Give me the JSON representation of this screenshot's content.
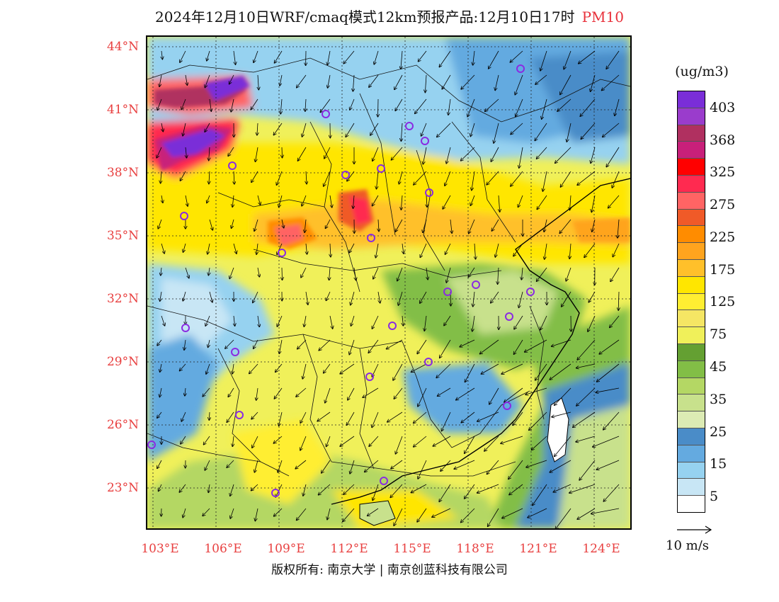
{
  "title": {
    "main": "2024年12月10日WRF/cmaq模式12km预报产品:12月10日17时",
    "variable": "PM10",
    "variable_color": "#e8303a"
  },
  "lat_labels": [
    "44°N",
    "41°N",
    "38°N",
    "35°N",
    "32°N",
    "29°N",
    "26°N",
    "23°N"
  ],
  "lon_labels": [
    "103°E",
    "106°E",
    "109°E",
    "112°E",
    "115°E",
    "118°E",
    "121°E",
    "124°E"
  ],
  "legend": {
    "unit": "(ug/m3)",
    "levels": [
      "403",
      "368",
      "325",
      "275",
      "225",
      "175",
      "125",
      "75",
      "45",
      "35",
      "25",
      "15",
      "5"
    ],
    "colors": [
      "#7a2ed8",
      "#9a3ccc",
      "#b03060",
      "#c8207a",
      "#ff0000",
      "#ff2a50",
      "#ff6464",
      "#f05a28",
      "#ff8c00",
      "#ffa41e",
      "#ffc02a",
      "#ffe600",
      "#ffee32",
      "#f5e664",
      "#f0f05a",
      "#64a032",
      "#82be46",
      "#b4d764",
      "#c8e18c",
      "#dcebb4",
      "#4a8cc8",
      "#64aae0",
      "#96d2f0",
      "#c8e6f5",
      "#ffffff"
    ]
  },
  "vector_ref": {
    "label": "10 m/s"
  },
  "copyright": "版权所有: 南京大学 | 南京创蓝科技有限公司"
}
